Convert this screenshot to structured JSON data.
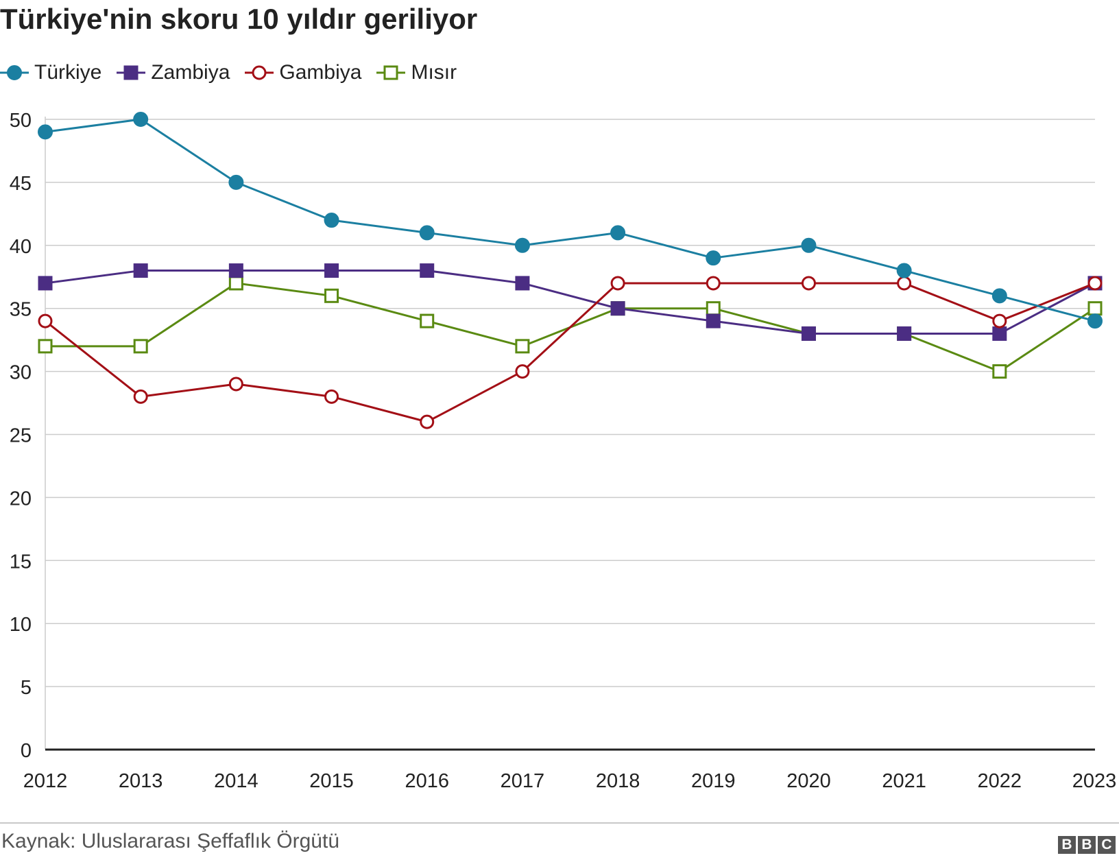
{
  "chart_data": {
    "type": "line",
    "title": "Türkiye'nin skoru 10 yıldır geriliyor",
    "categories": [
      "2012",
      "2013",
      "2014",
      "2015",
      "2016",
      "2017",
      "2018",
      "2019",
      "2020",
      "2021",
      "2022",
      "2023"
    ],
    "series": [
      {
        "name": "Türkiye",
        "color": "#1b7fa1",
        "marker": "filled-circle",
        "values": [
          49,
          50,
          45,
          42,
          41,
          40,
          41,
          39,
          40,
          38,
          36,
          34
        ]
      },
      {
        "name": "Zambiya",
        "color": "#4b2d83",
        "marker": "filled-square",
        "values": [
          37,
          38,
          38,
          38,
          38,
          37,
          35,
          34,
          33,
          33,
          33,
          37
        ]
      },
      {
        "name": "Gambiya",
        "color": "#a30f16",
        "marker": "open-circle",
        "values": [
          34,
          28,
          29,
          28,
          26,
          30,
          37,
          37,
          37,
          37,
          34,
          37
        ]
      },
      {
        "name": "Mısır",
        "color": "#5a8a12",
        "marker": "open-square",
        "values": [
          32,
          32,
          37,
          36,
          34,
          32,
          35,
          35,
          33,
          33,
          30,
          35
        ]
      }
    ],
    "yticks": [
      0,
      5,
      10,
      15,
      20,
      25,
      30,
      35,
      40,
      45,
      50
    ],
    "ylim": [
      0,
      50
    ],
    "xlabel": "",
    "ylabel": "",
    "grid": true,
    "legend": "top-left"
  },
  "source": "Kaynak: Uluslararası Şeffaflık Örgütü",
  "logo": "BBC"
}
